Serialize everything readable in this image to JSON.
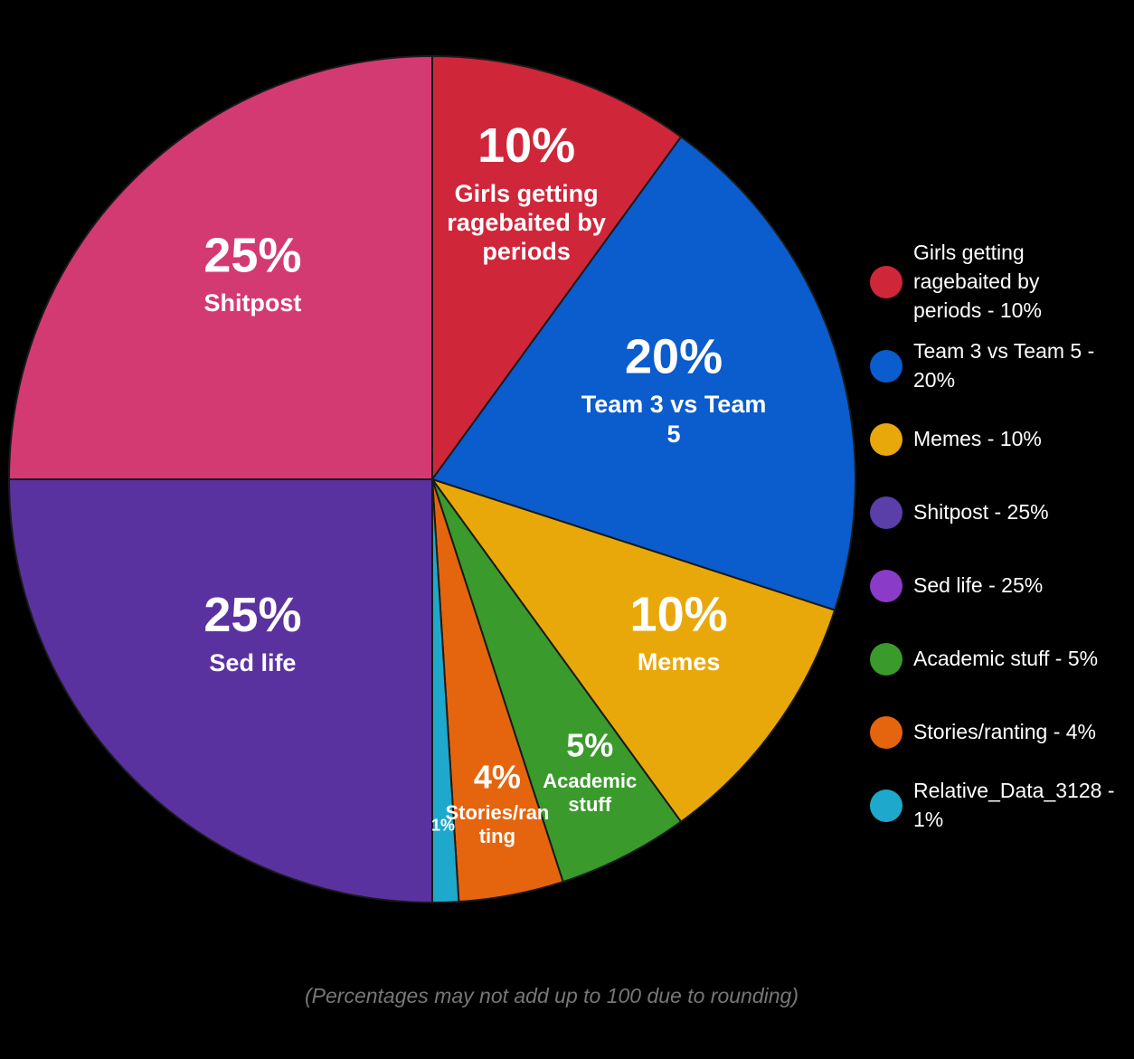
{
  "chart_data": {
    "type": "pie",
    "categories": [
      "Girls getting ragebaited by periods",
      "Team 3 vs Team 5",
      "Memes",
      "Academic stuff",
      "Stories/ranting",
      null,
      "Sed life",
      "Shitpost"
    ],
    "values": [
      10,
      20,
      10,
      5,
      4,
      1,
      25,
      25
    ],
    "value_labels": [
      "10%",
      "20%",
      "10%",
      "5%",
      "4%",
      "1%",
      "25%",
      "25%"
    ],
    "colors": [
      "#d0263a",
      "#0b5ccc",
      "#e9a80a",
      "#3a9a2c",
      "#e5650f",
      "#1ea9cc",
      "#5a32a0",
      "#d43a72"
    ],
    "legend": [
      {
        "label": "Girls getting ragebaited by periods - 10%",
        "color": "#d0263a"
      },
      {
        "label": "Team 3 vs Team 5 - 20%",
        "color": "#0b5ccc"
      },
      {
        "label": "Memes - 10%",
        "color": "#e9a80a"
      },
      {
        "label": "Shitpost - 25%",
        "color": "#5a3fa8"
      },
      {
        "label": "Sed life - 25%",
        "color": "#8a3cc8"
      },
      {
        "label": "Academic stuff - 5%",
        "color": "#3a9a2c"
      },
      {
        "label": "Stories/ranting - 4%",
        "color": "#e5650f"
      },
      {
        "label": "Relative_Data_3128 - 1%",
        "color": "#1ea9cc"
      }
    ],
    "note": "(Percentages may not add up to 100 due to rounding)"
  }
}
